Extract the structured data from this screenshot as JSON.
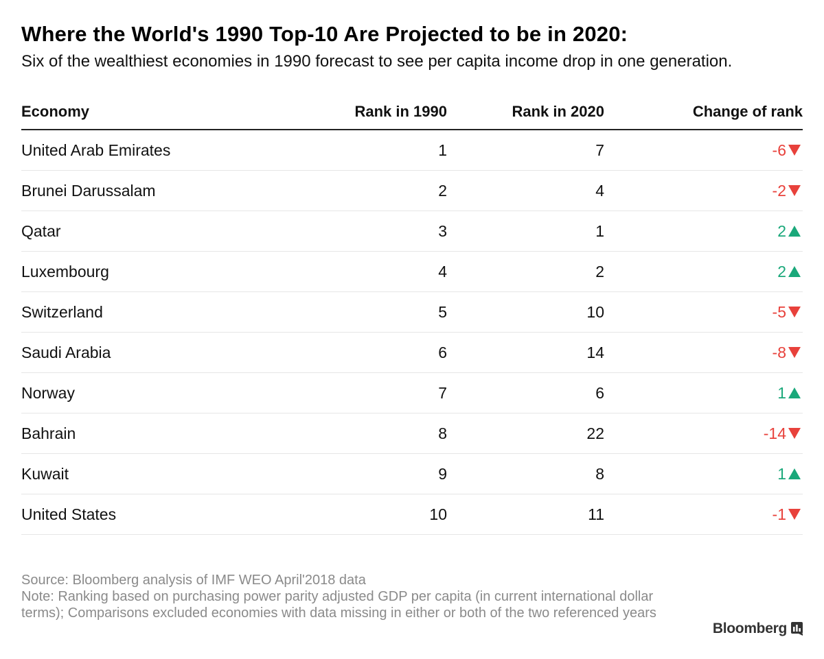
{
  "chart_data": {
    "type": "table",
    "title": "Where the World's 1990 Top-10 Are Projected to be in 2020:",
    "subtitle": "Six of the wealthiest economies in 1990 forecast to see per capita income drop in one generation.",
    "columns": [
      "Economy",
      "Rank in 1990",
      "Rank in 2020",
      "Change of rank"
    ],
    "rows": [
      {
        "economy": "United Arab Emirates",
        "rank1990": "1",
        "rank2020": "7",
        "change": "-6",
        "direction": "down"
      },
      {
        "economy": "Brunei Darussalam",
        "rank1990": "2",
        "rank2020": "4",
        "change": "-2",
        "direction": "down"
      },
      {
        "economy": "Qatar",
        "rank1990": "3",
        "rank2020": "1",
        "change": "2",
        "direction": "up"
      },
      {
        "economy": "Luxembourg",
        "rank1990": "4",
        "rank2020": "2",
        "change": "2",
        "direction": "up"
      },
      {
        "economy": "Switzerland",
        "rank1990": "5",
        "rank2020": "10",
        "change": "-5",
        "direction": "down"
      },
      {
        "economy": "Saudi Arabia",
        "rank1990": "6",
        "rank2020": "14",
        "change": "-8",
        "direction": "down"
      },
      {
        "economy": "Norway",
        "rank1990": "7",
        "rank2020": "6",
        "change": "1",
        "direction": "up"
      },
      {
        "economy": "Bahrain",
        "rank1990": "8",
        "rank2020": "22",
        "change": "-14",
        "direction": "down"
      },
      {
        "economy": "Kuwait",
        "rank1990": "9",
        "rank2020": "8",
        "change": "1",
        "direction": "up"
      },
      {
        "economy": "United States",
        "rank1990": "10",
        "rank2020": "11",
        "change": "-1",
        "direction": "down"
      }
    ],
    "colors": {
      "down": "#e8413b",
      "up": "#1aa87a"
    }
  },
  "footer": {
    "source": "Source: Bloomberg analysis of IMF WEO April'2018 data",
    "note": "Note: Ranking based on purchasing power parity adjusted GDP per capita (in current international dollar terms); Comparisons excluded economies with data missing in either or both of the two referenced years"
  },
  "brand": {
    "name": "Bloomberg",
    "icon": "bloomberg-chart-icon"
  }
}
